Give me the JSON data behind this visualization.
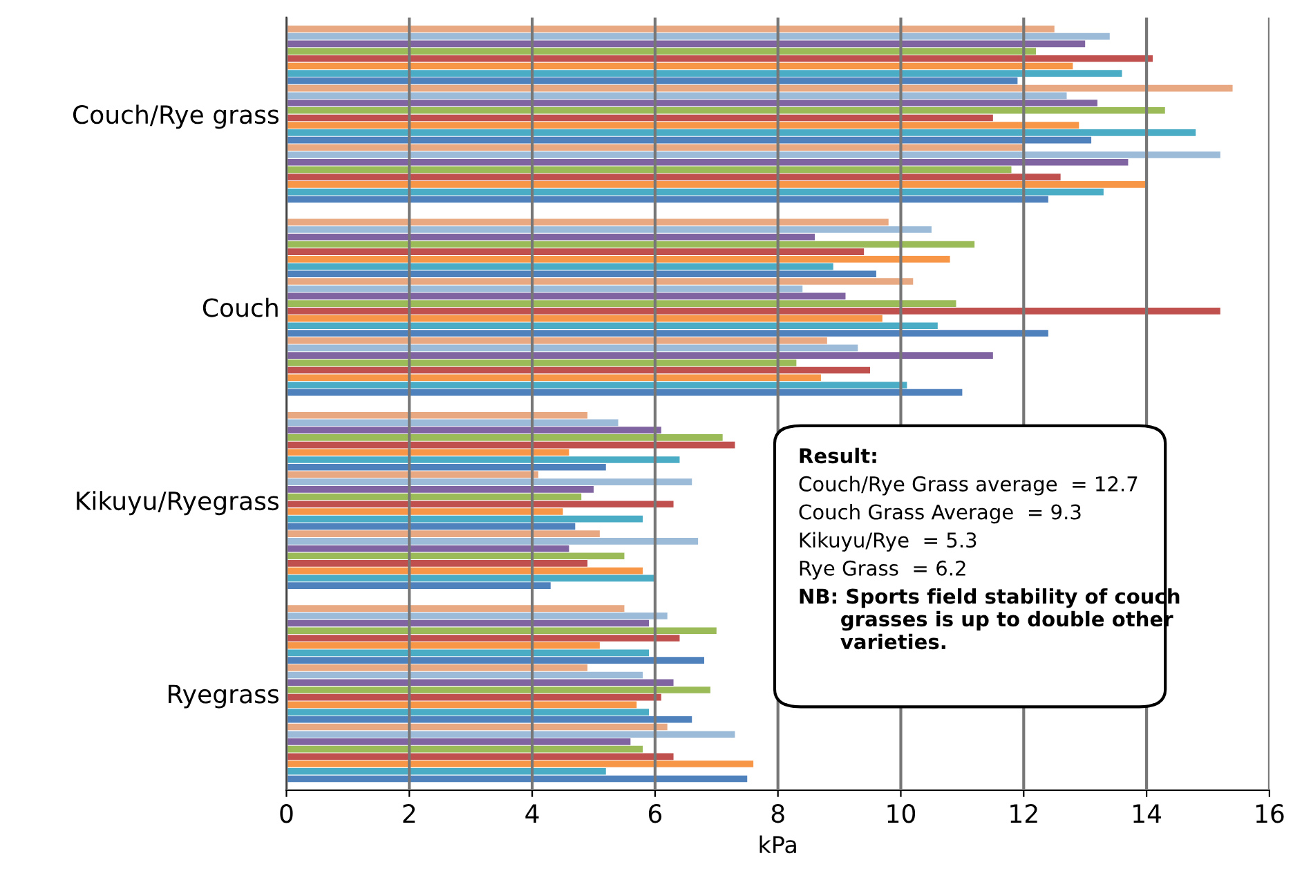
{
  "chart_data": {
    "type": "bar",
    "orientation": "horizontal",
    "xlabel": "kPa",
    "categories": [
      "Couch/Rye grass",
      "Couch",
      "Kikuyu/Ryegrass",
      "Ryegrass"
    ],
    "xlim": [
      0,
      16
    ],
    "xticks": [
      0,
      2,
      4,
      6,
      8,
      10,
      12,
      14,
      16
    ],
    "grid": "x",
    "legend": false,
    "series": [
      {
        "color": "#e8a882",
        "values": [
          12.5,
          9.8,
          4.9,
          5.5
        ]
      },
      {
        "color": "#9bbbd9",
        "values": [
          13.4,
          10.5,
          5.4,
          6.2
        ]
      },
      {
        "color": "#8064a2",
        "values": [
          13.0,
          8.6,
          6.1,
          5.9
        ]
      },
      {
        "color": "#9bbb59",
        "values": [
          12.2,
          11.2,
          7.1,
          7.0
        ]
      },
      {
        "color": "#c0504d",
        "values": [
          14.1,
          9.4,
          7.3,
          6.4
        ]
      },
      {
        "color": "#f79646",
        "values": [
          12.8,
          10.8,
          4.6,
          5.1
        ]
      },
      {
        "color": "#4bacc6",
        "values": [
          13.6,
          8.9,
          6.4,
          5.9
        ]
      },
      {
        "color": "#4f81bd",
        "values": [
          11.9,
          9.6,
          5.2,
          6.8
        ]
      },
      {
        "color": "#e8a882",
        "values": [
          15.4,
          10.2,
          4.1,
          4.9
        ]
      },
      {
        "color": "#9bbbd9",
        "values": [
          12.7,
          8.4,
          6.6,
          5.8
        ]
      },
      {
        "color": "#8064a2",
        "values": [
          13.2,
          9.1,
          5.0,
          6.3
        ]
      },
      {
        "color": "#9bbb59",
        "values": [
          14.3,
          10.9,
          4.8,
          6.9
        ]
      },
      {
        "color": "#c0504d",
        "values": [
          11.5,
          15.2,
          6.3,
          6.1
        ]
      },
      {
        "color": "#f79646",
        "values": [
          12.9,
          9.7,
          4.5,
          5.7
        ]
      },
      {
        "color": "#4bacc6",
        "values": [
          14.8,
          10.6,
          5.8,
          5.9
        ]
      },
      {
        "color": "#4f81bd",
        "values": [
          13.1,
          12.4,
          4.7,
          6.6
        ]
      },
      {
        "color": "#e8a882",
        "values": [
          12.0,
          8.8,
          5.1,
          6.2
        ]
      },
      {
        "color": "#9bbbd9",
        "values": [
          15.2,
          9.3,
          6.7,
          7.3
        ]
      },
      {
        "color": "#8064a2",
        "values": [
          13.7,
          11.5,
          4.6,
          5.6
        ]
      },
      {
        "color": "#9bbb59",
        "values": [
          11.8,
          8.3,
          5.5,
          5.8
        ]
      },
      {
        "color": "#c0504d",
        "values": [
          12.6,
          9.5,
          4.9,
          6.3
        ]
      },
      {
        "color": "#f79646",
        "values": [
          14.0,
          8.7,
          5.8,
          7.6
        ]
      },
      {
        "color": "#4bacc6",
        "values": [
          13.3,
          10.1,
          6.0,
          5.2
        ]
      },
      {
        "color": "#4f81bd",
        "values": [
          12.4,
          11.0,
          4.3,
          7.5
        ]
      }
    ],
    "annotations": [
      "Result:",
      "Couch/Rye Grass average  = 12.7",
      "Couch Grass Average  = 9.3",
      "Kikuyu/Rye  = 5.3",
      "Rye Grass  = 6.2",
      "NB: Sports field stability of couch\n      grasses is up to double other\n      varieties."
    ]
  }
}
